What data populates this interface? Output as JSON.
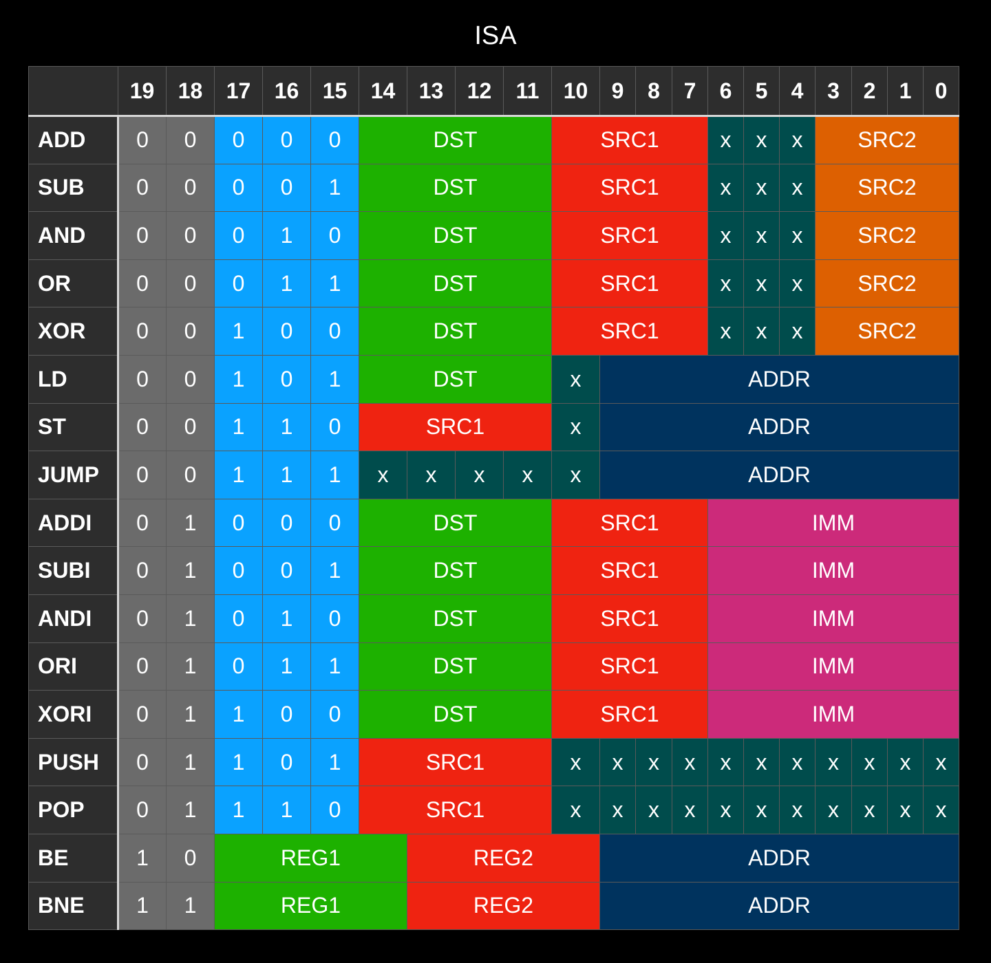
{
  "title": "ISA",
  "bit_headers": [
    "19",
    "18",
    "17",
    "16",
    "15",
    "14",
    "13",
    "12",
    "11",
    "10",
    "9",
    "8",
    "7",
    "6",
    "5",
    "4",
    "3",
    "2",
    "1",
    "0"
  ],
  "colors": {
    "gray": "#6b6b6b",
    "blue": "#0aa2ff",
    "green": "#1db100",
    "red": "#ef2311",
    "teal": "#004c4c",
    "orange": "#dd6001",
    "navy": "#00335e",
    "pink": "#cc2a7a"
  },
  "instructions": [
    {
      "mnemonic": "ADD",
      "fields": [
        [
          "0",
          1,
          "gray"
        ],
        [
          "0",
          1,
          "gray"
        ],
        [
          "0",
          1,
          "blue"
        ],
        [
          "0",
          1,
          "blue"
        ],
        [
          "0",
          1,
          "blue"
        ],
        [
          "DST",
          4,
          "green"
        ],
        [
          "SRC1",
          4,
          "red"
        ],
        [
          "x",
          1,
          "teal"
        ],
        [
          "x",
          1,
          "teal"
        ],
        [
          "x",
          1,
          "teal"
        ],
        [
          "SRC2",
          4,
          "orange"
        ]
      ]
    },
    {
      "mnemonic": "SUB",
      "fields": [
        [
          "0",
          1,
          "gray"
        ],
        [
          "0",
          1,
          "gray"
        ],
        [
          "0",
          1,
          "blue"
        ],
        [
          "0",
          1,
          "blue"
        ],
        [
          "1",
          1,
          "blue"
        ],
        [
          "DST",
          4,
          "green"
        ],
        [
          "SRC1",
          4,
          "red"
        ],
        [
          "x",
          1,
          "teal"
        ],
        [
          "x",
          1,
          "teal"
        ],
        [
          "x",
          1,
          "teal"
        ],
        [
          "SRC2",
          4,
          "orange"
        ]
      ]
    },
    {
      "mnemonic": "AND",
      "fields": [
        [
          "0",
          1,
          "gray"
        ],
        [
          "0",
          1,
          "gray"
        ],
        [
          "0",
          1,
          "blue"
        ],
        [
          "1",
          1,
          "blue"
        ],
        [
          "0",
          1,
          "blue"
        ],
        [
          "DST",
          4,
          "green"
        ],
        [
          "SRC1",
          4,
          "red"
        ],
        [
          "x",
          1,
          "teal"
        ],
        [
          "x",
          1,
          "teal"
        ],
        [
          "x",
          1,
          "teal"
        ],
        [
          "SRC2",
          4,
          "orange"
        ]
      ]
    },
    {
      "mnemonic": "OR",
      "fields": [
        [
          "0",
          1,
          "gray"
        ],
        [
          "0",
          1,
          "gray"
        ],
        [
          "0",
          1,
          "blue"
        ],
        [
          "1",
          1,
          "blue"
        ],
        [
          "1",
          1,
          "blue"
        ],
        [
          "DST",
          4,
          "green"
        ],
        [
          "SRC1",
          4,
          "red"
        ],
        [
          "x",
          1,
          "teal"
        ],
        [
          "x",
          1,
          "teal"
        ],
        [
          "x",
          1,
          "teal"
        ],
        [
          "SRC2",
          4,
          "orange"
        ]
      ]
    },
    {
      "mnemonic": "XOR",
      "fields": [
        [
          "0",
          1,
          "gray"
        ],
        [
          "0",
          1,
          "gray"
        ],
        [
          "1",
          1,
          "blue"
        ],
        [
          "0",
          1,
          "blue"
        ],
        [
          "0",
          1,
          "blue"
        ],
        [
          "DST",
          4,
          "green"
        ],
        [
          "SRC1",
          4,
          "red"
        ],
        [
          "x",
          1,
          "teal"
        ],
        [
          "x",
          1,
          "teal"
        ],
        [
          "x",
          1,
          "teal"
        ],
        [
          "SRC2",
          4,
          "orange"
        ]
      ]
    },
    {
      "mnemonic": "LD",
      "fields": [
        [
          "0",
          1,
          "gray"
        ],
        [
          "0",
          1,
          "gray"
        ],
        [
          "1",
          1,
          "blue"
        ],
        [
          "0",
          1,
          "blue"
        ],
        [
          "1",
          1,
          "blue"
        ],
        [
          "DST",
          4,
          "green"
        ],
        [
          "x",
          1,
          "teal"
        ],
        [
          "ADDR",
          10,
          "navy"
        ]
      ]
    },
    {
      "mnemonic": "ST",
      "fields": [
        [
          "0",
          1,
          "gray"
        ],
        [
          "0",
          1,
          "gray"
        ],
        [
          "1",
          1,
          "blue"
        ],
        [
          "1",
          1,
          "blue"
        ],
        [
          "0",
          1,
          "blue"
        ],
        [
          "SRC1",
          4,
          "red"
        ],
        [
          "x",
          1,
          "teal"
        ],
        [
          "ADDR",
          10,
          "navy"
        ]
      ]
    },
    {
      "mnemonic": "JUMP",
      "fields": [
        [
          "0",
          1,
          "gray"
        ],
        [
          "0",
          1,
          "gray"
        ],
        [
          "1",
          1,
          "blue"
        ],
        [
          "1",
          1,
          "blue"
        ],
        [
          "1",
          1,
          "blue"
        ],
        [
          "x",
          1,
          "teal"
        ],
        [
          "x",
          1,
          "teal"
        ],
        [
          "x",
          1,
          "teal"
        ],
        [
          "x",
          1,
          "teal"
        ],
        [
          "x",
          1,
          "teal"
        ],
        [
          "ADDR",
          10,
          "navy"
        ]
      ]
    },
    {
      "mnemonic": "ADDI",
      "fields": [
        [
          "0",
          1,
          "gray"
        ],
        [
          "1",
          1,
          "gray"
        ],
        [
          "0",
          1,
          "blue"
        ],
        [
          "0",
          1,
          "blue"
        ],
        [
          "0",
          1,
          "blue"
        ],
        [
          "DST",
          4,
          "green"
        ],
        [
          "SRC1",
          4,
          "red"
        ],
        [
          "IMM",
          7,
          "pink"
        ]
      ]
    },
    {
      "mnemonic": "SUBI",
      "fields": [
        [
          "0",
          1,
          "gray"
        ],
        [
          "1",
          1,
          "gray"
        ],
        [
          "0",
          1,
          "blue"
        ],
        [
          "0",
          1,
          "blue"
        ],
        [
          "1",
          1,
          "blue"
        ],
        [
          "DST",
          4,
          "green"
        ],
        [
          "SRC1",
          4,
          "red"
        ],
        [
          "IMM",
          7,
          "pink"
        ]
      ]
    },
    {
      "mnemonic": "ANDI",
      "fields": [
        [
          "0",
          1,
          "gray"
        ],
        [
          "1",
          1,
          "gray"
        ],
        [
          "0",
          1,
          "blue"
        ],
        [
          "1",
          1,
          "blue"
        ],
        [
          "0",
          1,
          "blue"
        ],
        [
          "DST",
          4,
          "green"
        ],
        [
          "SRC1",
          4,
          "red"
        ],
        [
          "IMM",
          7,
          "pink"
        ]
      ]
    },
    {
      "mnemonic": "ORI",
      "fields": [
        [
          "0",
          1,
          "gray"
        ],
        [
          "1",
          1,
          "gray"
        ],
        [
          "0",
          1,
          "blue"
        ],
        [
          "1",
          1,
          "blue"
        ],
        [
          "1",
          1,
          "blue"
        ],
        [
          "DST",
          4,
          "green"
        ],
        [
          "SRC1",
          4,
          "red"
        ],
        [
          "IMM",
          7,
          "pink"
        ]
      ]
    },
    {
      "mnemonic": "XORI",
      "fields": [
        [
          "0",
          1,
          "gray"
        ],
        [
          "1",
          1,
          "gray"
        ],
        [
          "1",
          1,
          "blue"
        ],
        [
          "0",
          1,
          "blue"
        ],
        [
          "0",
          1,
          "blue"
        ],
        [
          "DST",
          4,
          "green"
        ],
        [
          "SRC1",
          4,
          "red"
        ],
        [
          "IMM",
          7,
          "pink"
        ]
      ]
    },
    {
      "mnemonic": "PUSH",
      "fields": [
        [
          "0",
          1,
          "gray"
        ],
        [
          "1",
          1,
          "gray"
        ],
        [
          "1",
          1,
          "blue"
        ],
        [
          "0",
          1,
          "blue"
        ],
        [
          "1",
          1,
          "blue"
        ],
        [
          "SRC1",
          4,
          "red"
        ],
        [
          "x",
          1,
          "teal"
        ],
        [
          "x",
          1,
          "teal"
        ],
        [
          "x",
          1,
          "teal"
        ],
        [
          "x",
          1,
          "teal"
        ],
        [
          "x",
          1,
          "teal"
        ],
        [
          "x",
          1,
          "teal"
        ],
        [
          "x",
          1,
          "teal"
        ],
        [
          "x",
          1,
          "teal"
        ],
        [
          "x",
          1,
          "teal"
        ],
        [
          "x",
          1,
          "teal"
        ],
        [
          "x",
          1,
          "teal"
        ]
      ]
    },
    {
      "mnemonic": "POP",
      "fields": [
        [
          "0",
          1,
          "gray"
        ],
        [
          "1",
          1,
          "gray"
        ],
        [
          "1",
          1,
          "blue"
        ],
        [
          "1",
          1,
          "blue"
        ],
        [
          "0",
          1,
          "blue"
        ],
        [
          "SRC1",
          4,
          "red"
        ],
        [
          "x",
          1,
          "teal"
        ],
        [
          "x",
          1,
          "teal"
        ],
        [
          "x",
          1,
          "teal"
        ],
        [
          "x",
          1,
          "teal"
        ],
        [
          "x",
          1,
          "teal"
        ],
        [
          "x",
          1,
          "teal"
        ],
        [
          "x",
          1,
          "teal"
        ],
        [
          "x",
          1,
          "teal"
        ],
        [
          "x",
          1,
          "teal"
        ],
        [
          "x",
          1,
          "teal"
        ],
        [
          "x",
          1,
          "teal"
        ]
      ]
    },
    {
      "mnemonic": "BE",
      "fields": [
        [
          "1",
          1,
          "gray"
        ],
        [
          "0",
          1,
          "gray"
        ],
        [
          "REG1",
          4,
          "green"
        ],
        [
          "REG2",
          4,
          "red"
        ],
        [
          "ADDR",
          10,
          "navy"
        ]
      ]
    },
    {
      "mnemonic": "BNE",
      "fields": [
        [
          "1",
          1,
          "gray"
        ],
        [
          "1",
          1,
          "gray"
        ],
        [
          "REG1",
          4,
          "green"
        ],
        [
          "REG2",
          4,
          "red"
        ],
        [
          "ADDR",
          10,
          "navy"
        ]
      ]
    }
  ]
}
